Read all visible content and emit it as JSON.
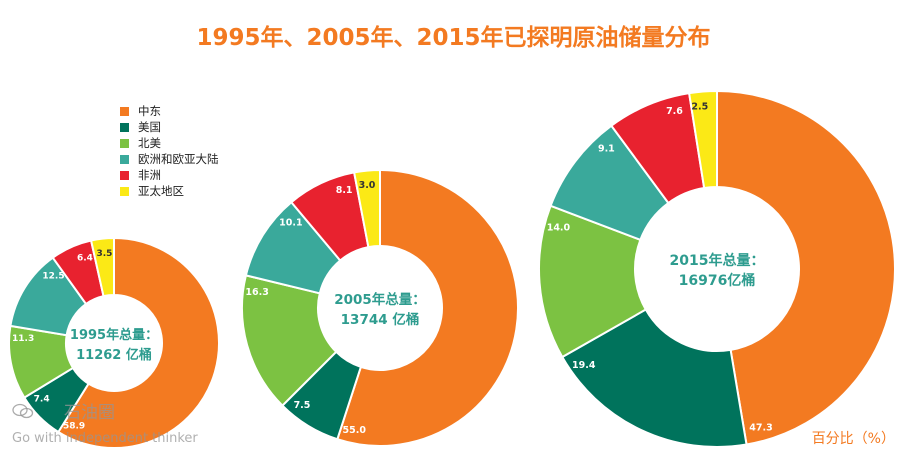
{
  "title": "1995年、2005年、2015年已探明原油储量分布",
  "legend": {
    "items": [
      {
        "label": "中东",
        "color": "#f37a21"
      },
      {
        "label": "美国",
        "color": "#00735c"
      },
      {
        "label": "北美",
        "color": "#7cc242"
      },
      {
        "label": "欧洲和欧亚大陆",
        "color": "#3aa99b"
      },
      {
        "label": "非洲",
        "color": "#e8222f"
      },
      {
        "label": "亚太地区",
        "color": "#fbe916"
      }
    ]
  },
  "unit_label": "百分比（%）",
  "watermark": {
    "logo_text": "石油圈",
    "tagline": "Go with independent thinker"
  },
  "chart_data": [
    {
      "type": "donut",
      "center_line1": "1995年总量：",
      "center_line2": "11262 亿桶",
      "categories": [
        "中东",
        "美国",
        "北美",
        "欧洲和欧亚大陆",
        "非洲",
        "亚太地区"
      ],
      "values": [
        58.9,
        7.4,
        11.3,
        12.5,
        6.4,
        3.5
      ]
    },
    {
      "type": "donut",
      "center_line1": "2005年总量：",
      "center_line2": "13744 亿桶",
      "categories": [
        "中东",
        "美国",
        "北美",
        "欧洲和欧亚大陆",
        "非洲",
        "亚太地区"
      ],
      "values": [
        55.0,
        7.5,
        16.3,
        10.1,
        8.1,
        3.0
      ]
    },
    {
      "type": "donut",
      "center_line1": "2015年总量：",
      "center_line2": "16976亿桶",
      "categories": [
        "中东",
        "美国",
        "北美",
        "欧洲和欧亚大陆",
        "非洲",
        "亚太地区"
      ],
      "values": [
        47.3,
        19.4,
        14.0,
        9.1,
        7.6,
        2.5
      ]
    }
  ]
}
